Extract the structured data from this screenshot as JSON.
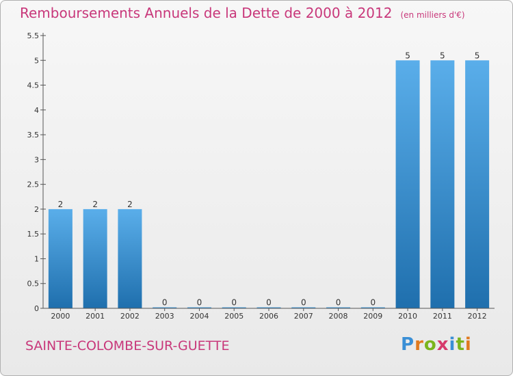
{
  "header": {
    "title": "Remboursements Annuels de la Dette de 2000 à 2012",
    "unit": "(en milliers d'€)"
  },
  "footer": {
    "commune": "SAINTE-COLOMBE-SUR-GUETTE",
    "brand": "Proxiti"
  },
  "colors": {
    "title": "#c8377a",
    "bar_top": "#5aaeea",
    "bar_bottom": "#1f6fad",
    "background": "#efefef"
  },
  "chart_data": {
    "type": "bar",
    "title": "Remboursements Annuels de la Dette de 2000 à 2012",
    "subtitle": "(en milliers d'€)",
    "categories": [
      "2000",
      "2001",
      "2002",
      "2003",
      "2004",
      "2005",
      "2006",
      "2007",
      "2008",
      "2009",
      "2010",
      "2011",
      "2012"
    ],
    "values": [
      2,
      2,
      2,
      0,
      0,
      0,
      0,
      0,
      0,
      0,
      5,
      5,
      5
    ],
    "data_labels": [
      "2",
      "2",
      "2",
      "0",
      "0",
      "0",
      "0",
      "0",
      "0",
      "0",
      "5",
      "5",
      "5"
    ],
    "yticks": [
      "0",
      "0.5",
      "1",
      "1.5",
      "2",
      "2.5",
      "3",
      "3.5",
      "4",
      "4.5",
      "5",
      "5.5"
    ],
    "ylim": [
      0,
      5.5
    ],
    "grid": false,
    "legend": "none"
  }
}
